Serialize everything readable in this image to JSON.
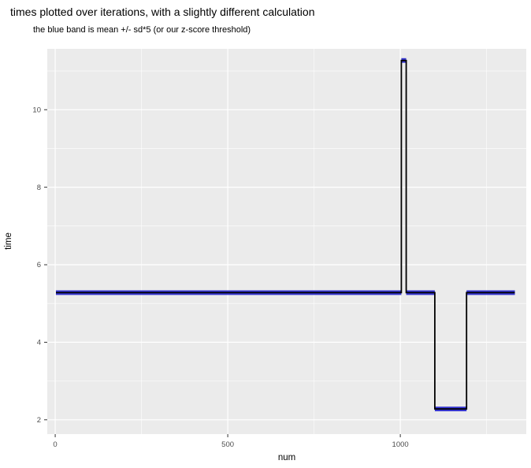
{
  "title": "times plotted over iterations, with a slightly different calculation",
  "subtitle": "the blue band is mean +/- sd*5 (or our z-score threshold)",
  "chart_data": {
    "type": "line",
    "title": "times plotted over iterations, with a slightly different calculation",
    "subtitle": "the blue band is mean +/- sd*5 (or our z-score threshold)",
    "xlabel": "num",
    "ylabel": "time",
    "x_ticks": [
      0,
      500,
      1000
    ],
    "x_minor_ticks": [
      250,
      750,
      1250
    ],
    "y_ticks": [
      2,
      4,
      6,
      8,
      10
    ],
    "y_minor_ticks": [
      3,
      5,
      7,
      9,
      11
    ],
    "xlim": [
      -23,
      1365
    ],
    "ylim": [
      1.63,
      11.57
    ],
    "grid": true,
    "legend": "none",
    "points": [
      [
        2,
        5.28
      ],
      [
        1003,
        5.28
      ],
      [
        1003,
        11.27
      ],
      [
        1017,
        11.27
      ],
      [
        1017,
        5.28
      ],
      [
        1100,
        5.28
      ],
      [
        1100,
        2.28
      ],
      [
        1192,
        2.28
      ],
      [
        1192,
        5.28
      ],
      [
        1332,
        5.28
      ]
    ],
    "band_halfwidth": 0.06,
    "band_segments": [
      {
        "x0": 2,
        "x1": 1003,
        "y": 5.28
      },
      {
        "x0": 1003,
        "x1": 1017,
        "y": 11.27
      },
      {
        "x0": 1017,
        "x1": 1100,
        "y": 5.28
      },
      {
        "x0": 1100,
        "x1": 1192,
        "y": 2.28
      },
      {
        "x0": 1192,
        "x1": 1332,
        "y": 5.28
      }
    ],
    "colors": {
      "panel_bg": "#EBEBEB",
      "grid": "#FFFFFF",
      "line": "#000000",
      "band": "#2222CC",
      "tick_text": "#4D4D4D",
      "tick_mark": "#333333",
      "title_text": "#000000"
    }
  }
}
